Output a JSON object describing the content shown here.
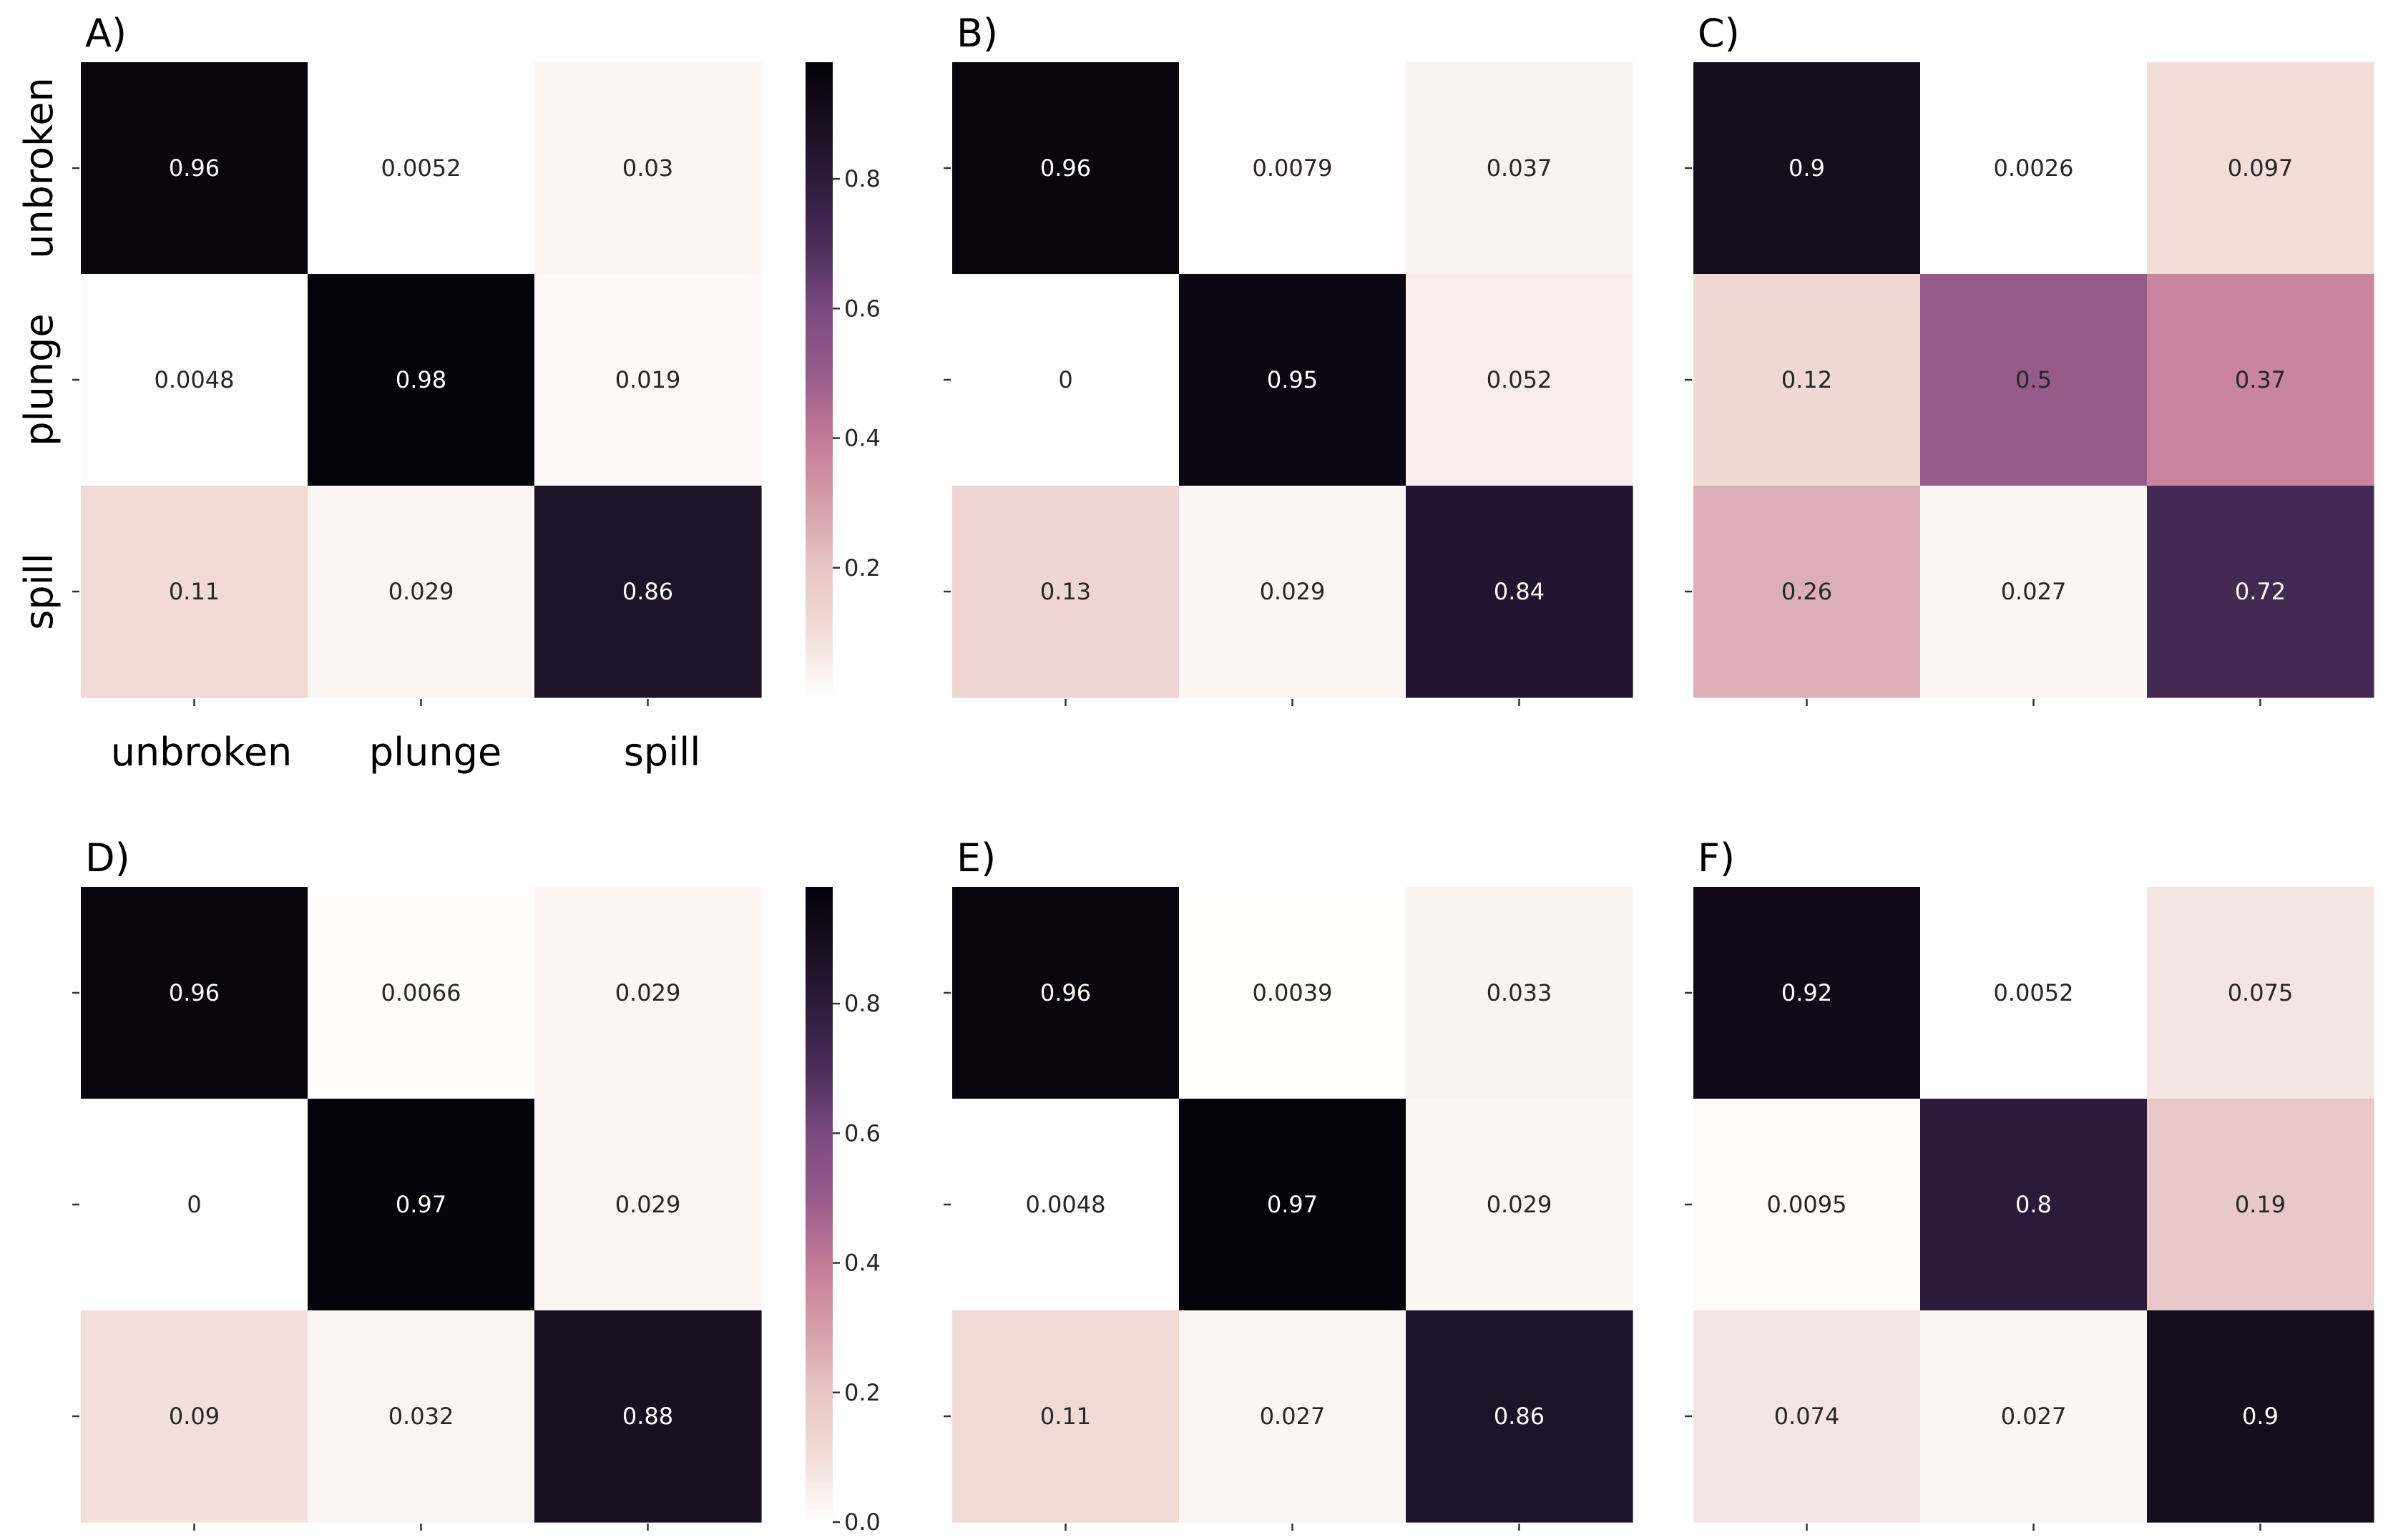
{
  "chart_data": [
    {
      "type": "heatmap",
      "panel_label": "A)",
      "rows": [
        "unbroken",
        "plunge",
        "spill"
      ],
      "cols": [
        "unbroken",
        "plunge",
        "spill"
      ],
      "values": [
        [
          0.96,
          0.0052,
          0.03
        ],
        [
          0.0048,
          0.98,
          0.019
        ],
        [
          0.11,
          0.029,
          0.86
        ]
      ],
      "cell_labels": [
        [
          "0.96",
          "0.0052",
          "0.03"
        ],
        [
          "0.0048",
          "0.98",
          "0.019"
        ],
        [
          "0.11",
          "0.029",
          "0.86"
        ]
      ],
      "show_row_labels": true,
      "show_col_labels": true
    },
    {
      "type": "heatmap",
      "panel_label": "B)",
      "values": [
        [
          0.96,
          0.0079,
          0.037
        ],
        [
          0,
          0.95,
          0.052
        ],
        [
          0.13,
          0.029,
          0.84
        ]
      ],
      "cell_labels": [
        [
          "0.96",
          "0.0079",
          "0.037"
        ],
        [
          "0",
          "0.95",
          "0.052"
        ],
        [
          "0.13",
          "0.029",
          "0.84"
        ]
      ],
      "show_row_labels": false,
      "show_col_labels": false
    },
    {
      "type": "heatmap",
      "panel_label": "C)",
      "values": [
        [
          0.9,
          0.0026,
          0.097
        ],
        [
          0.12,
          0.5,
          0.37
        ],
        [
          0.26,
          0.027,
          0.72
        ]
      ],
      "cell_labels": [
        [
          "0.9",
          "0.0026",
          "0.097"
        ],
        [
          "0.12",
          "0.5",
          "0.37"
        ],
        [
          "0.26",
          "0.027",
          "0.72"
        ]
      ],
      "show_row_labels": false,
      "show_col_labels": false
    },
    {
      "type": "heatmap",
      "panel_label": "D)",
      "values": [
        [
          0.96,
          0.0066,
          0.029
        ],
        [
          0,
          0.97,
          0.029
        ],
        [
          0.09,
          0.032,
          0.88
        ]
      ],
      "cell_labels": [
        [
          "0.96",
          "0.0066",
          "0.029"
        ],
        [
          "0",
          "0.97",
          "0.029"
        ],
        [
          "0.09",
          "0.032",
          "0.88"
        ]
      ],
      "show_row_labels": false,
      "show_col_labels": false
    },
    {
      "type": "heatmap",
      "panel_label": "E)",
      "values": [
        [
          0.96,
          0.0039,
          0.033
        ],
        [
          0.0048,
          0.97,
          0.029
        ],
        [
          0.11,
          0.027,
          0.86
        ]
      ],
      "cell_labels": [
        [
          "0.96",
          "0.0039",
          "0.033"
        ],
        [
          "0.0048",
          "0.97",
          "0.029"
        ],
        [
          "0.11",
          "0.027",
          "0.86"
        ]
      ],
      "show_row_labels": false,
      "show_col_labels": false
    },
    {
      "type": "heatmap",
      "panel_label": "F)",
      "values": [
        [
          0.92,
          0.0052,
          0.075
        ],
        [
          0.0095,
          0.8,
          0.19
        ],
        [
          0.074,
          0.027,
          0.9
        ]
      ],
      "cell_labels": [
        [
          "0.92",
          "0.0052",
          "0.075"
        ],
        [
          "0.0095",
          "0.8",
          "0.19"
        ],
        [
          "0.074",
          "0.027",
          "0.9"
        ]
      ],
      "show_row_labels": false,
      "show_col_labels": false
    }
  ],
  "colorbars": [
    {
      "row": 0,
      "range": [
        0.0,
        0.98
      ],
      "ticks": [
        0.2,
        0.4,
        0.6,
        0.8
      ],
      "tick_labels": [
        "0.2",
        "0.4",
        "0.6",
        "0.8"
      ]
    },
    {
      "row": 1,
      "range": [
        0.0,
        0.98
      ],
      "ticks": [
        0.0,
        0.2,
        0.4,
        0.6,
        0.8
      ],
      "tick_labels": [
        "0.0",
        "0.2",
        "0.4",
        "0.6",
        "0.8"
      ]
    }
  ],
  "colormap": {
    "name": "cubehelix-light-to-dark",
    "stops": [
      [
        0.0,
        "#ffffff"
      ],
      [
        0.1,
        "#f2dcd8"
      ],
      [
        0.2,
        "#e7c6c6"
      ],
      [
        0.3,
        "#d59ea9"
      ],
      [
        0.4,
        "#c37a98"
      ],
      [
        0.5,
        "#975b8b"
      ],
      [
        0.6,
        "#7a4a7e"
      ],
      [
        0.7,
        "#4a2d59"
      ],
      [
        0.8,
        "#2c1a3b"
      ],
      [
        0.9,
        "#150c1c"
      ],
      [
        0.98,
        "#03020a"
      ]
    ]
  }
}
